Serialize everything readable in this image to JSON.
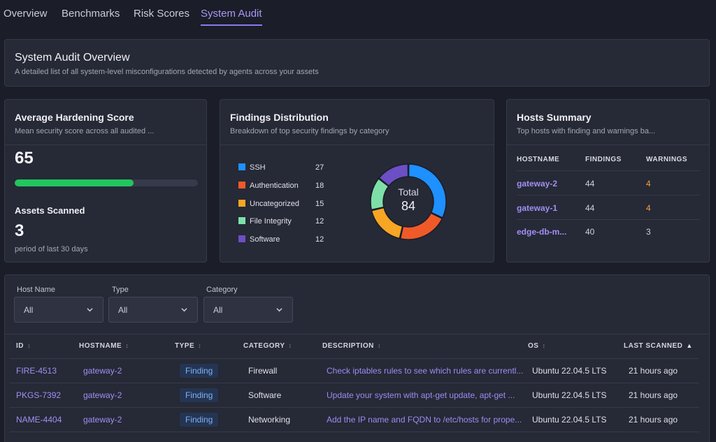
{
  "tabs": [
    {
      "label": "Overview"
    },
    {
      "label": "Benchmarks"
    },
    {
      "label": "Risk Scores"
    },
    {
      "label": "System Audit"
    }
  ],
  "overview": {
    "title": "System Audit Overview",
    "subtitle": "A detailed list of all system-level misconfigurations detected by agents across your assets"
  },
  "hardening": {
    "title": "Average Hardening Score",
    "subtitle": "Mean security score across all audited ...",
    "score": "65",
    "score_fraction": 0.65,
    "bar_color": "#22c55e",
    "assets_title": "Assets Scanned",
    "assets_value": "3",
    "assets_note": "period of last 30 days"
  },
  "findings": {
    "title": "Findings Distribution",
    "subtitle": "Breakdown of top security findings by category",
    "total_label": "Total",
    "total_value": "84",
    "categories": [
      {
        "name": "SSH",
        "count": "27",
        "value": 27,
        "color": "#1e90ff"
      },
      {
        "name": "Authentication",
        "count": "18",
        "value": 18,
        "color": "#f05a28"
      },
      {
        "name": "Uncategorized",
        "count": "15",
        "value": 15,
        "color": "#f6a623"
      },
      {
        "name": "File Integrity",
        "count": "12",
        "value": 12,
        "color": "#7ee0a8"
      },
      {
        "name": "Software",
        "count": "12",
        "value": 12,
        "color": "#6c4fc4"
      }
    ]
  },
  "hosts": {
    "title": "Hosts Summary",
    "subtitle": "Top hosts with finding and warnings ba...",
    "headers": {
      "hostname": "HOSTNAME",
      "findings": "FINDINGS",
      "warnings": "WARNINGS"
    },
    "rows": [
      {
        "hostname": "gateway-2",
        "findings": "44",
        "warnings": "4"
      },
      {
        "hostname": "gateway-1",
        "findings": "44",
        "warnings": "4"
      },
      {
        "hostname": "edge-db-m...",
        "findings": "40",
        "warnings": "3"
      }
    ]
  },
  "filters": {
    "host_label": "Host Name",
    "host_value": "All",
    "type_label": "Type",
    "type_value": "All",
    "category_label": "Category",
    "category_value": "All"
  },
  "table": {
    "headers": {
      "id": "ID",
      "hostname": "HOSTNAME",
      "type": "TYPE",
      "category": "CATEGORY",
      "description": "DESCRIPTION",
      "os": "OS",
      "last_scanned": "LAST SCANNED"
    },
    "sort_icon": "↕",
    "sort_active_icon": "▲",
    "rows": [
      {
        "id": "FIRE-4513",
        "hostname": "gateway-2",
        "type": "Finding",
        "category": "Firewall",
        "description": "Check iptables rules to see which rules are currentl...",
        "os": "Ubuntu 22.04.5 LTS",
        "last_scanned": "21 hours ago"
      },
      {
        "id": "PKGS-7392",
        "hostname": "gateway-2",
        "type": "Finding",
        "category": "Software",
        "description": "Update your system with apt-get update, apt-get ...",
        "os": "Ubuntu 22.04.5 LTS",
        "last_scanned": "21 hours ago"
      },
      {
        "id": "NAME-4404",
        "hostname": "gateway-2",
        "type": "Finding",
        "category": "Networking",
        "description": "Add the IP name and FQDN to /etc/hosts for prope...",
        "os": "Ubuntu 22.04.5 LTS",
        "last_scanned": "21 hours ago"
      }
    ]
  }
}
